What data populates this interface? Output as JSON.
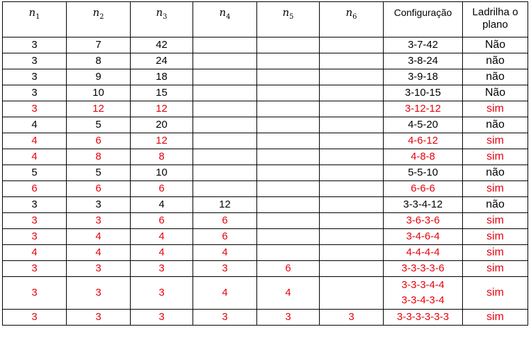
{
  "headers": {
    "n": [
      "1",
      "2",
      "3",
      "4",
      "5",
      "6"
    ],
    "config": "Configuração",
    "tiles": "Ladrilha o plano"
  },
  "colors": {
    "highlight": "#e8000b",
    "normal": "#000000"
  },
  "rows": [
    {
      "n1": "3",
      "n2": "7",
      "n3": "42",
      "n4": "",
      "n5": "",
      "n6": "",
      "config": "3-7-42",
      "config2": "",
      "tiles": "Não",
      "red": false
    },
    {
      "n1": "3",
      "n2": "8",
      "n3": "24",
      "n4": "",
      "n5": "",
      "n6": "",
      "config": "3-8-24",
      "config2": "",
      "tiles": "não",
      "red": false
    },
    {
      "n1": "3",
      "n2": "9",
      "n3": "18",
      "n4": "",
      "n5": "",
      "n6": "",
      "config": "3-9-18",
      "config2": "",
      "tiles": "não",
      "red": false
    },
    {
      "n1": "3",
      "n2": "10",
      "n3": "15",
      "n4": "",
      "n5": "",
      "n6": "",
      "config": "3-10-15",
      "config2": "",
      "tiles": "Não",
      "red": false
    },
    {
      "n1": "3",
      "n2": "12",
      "n3": "12",
      "n4": "",
      "n5": "",
      "n6": "",
      "config": "3-12-12",
      "config2": "",
      "tiles": "sim",
      "red": true
    },
    {
      "n1": "4",
      "n2": "5",
      "n3": "20",
      "n4": "",
      "n5": "",
      "n6": "",
      "config": "4-5-20",
      "config2": "",
      "tiles": "não",
      "red": false
    },
    {
      "n1": "4",
      "n2": "6",
      "n3": "12",
      "n4": "",
      "n5": "",
      "n6": "",
      "config": "4-6-12",
      "config2": "",
      "tiles": "sim",
      "red": true
    },
    {
      "n1": "4",
      "n2": "8",
      "n3": "8",
      "n4": "",
      "n5": "",
      "n6": "",
      "config": "4-8-8",
      "config2": "",
      "tiles": "sim",
      "red": true
    },
    {
      "n1": "5",
      "n2": "5",
      "n3": "10",
      "n4": "",
      "n5": "",
      "n6": "",
      "config": "5-5-10",
      "config2": "",
      "tiles": "não",
      "red": false
    },
    {
      "n1": "6",
      "n2": "6",
      "n3": "6",
      "n4": "",
      "n5": "",
      "n6": "",
      "config": "6-6-6",
      "config2": "",
      "tiles": "sim",
      "red": true
    },
    {
      "n1": "3",
      "n2": "3",
      "n3": "4",
      "n4": "12",
      "n5": "",
      "n6": "",
      "config": "3-3-4-12",
      "config2": "",
      "tiles": "não",
      "red": false
    },
    {
      "n1": "3",
      "n2": "3",
      "n3": "6",
      "n4": "6",
      "n5": "",
      "n6": "",
      "config": "3-6-3-6",
      "config2": "",
      "tiles": "sim",
      "red": true
    },
    {
      "n1": "3",
      "n2": "4",
      "n3": "4",
      "n4": "6",
      "n5": "",
      "n6": "",
      "config": "3-4-6-4",
      "config2": "",
      "tiles": "sim",
      "red": true
    },
    {
      "n1": "4",
      "n2": "4",
      "n3": "4",
      "n4": "4",
      "n5": "",
      "n6": "",
      "config": "4-4-4-4",
      "config2": "",
      "tiles": "sim",
      "red": true
    },
    {
      "n1": "3",
      "n2": "3",
      "n3": "3",
      "n4": "3",
      "n5": "6",
      "n6": "",
      "config": "3-3-3-3-6",
      "config2": "",
      "tiles": "sim",
      "red": true
    },
    {
      "n1": "3",
      "n2": "3",
      "n3": "3",
      "n4": "4",
      "n5": "4",
      "n6": "",
      "config": "3-3-3-4-4",
      "config2": "3-3-4-3-4",
      "tiles": "sim",
      "red": true
    },
    {
      "n1": "3",
      "n2": "3",
      "n3": "3",
      "n4": "3",
      "n5": "3",
      "n6": "3",
      "config": "3-3-3-3-3-3",
      "config2": "",
      "tiles": "sim",
      "red": true
    }
  ]
}
